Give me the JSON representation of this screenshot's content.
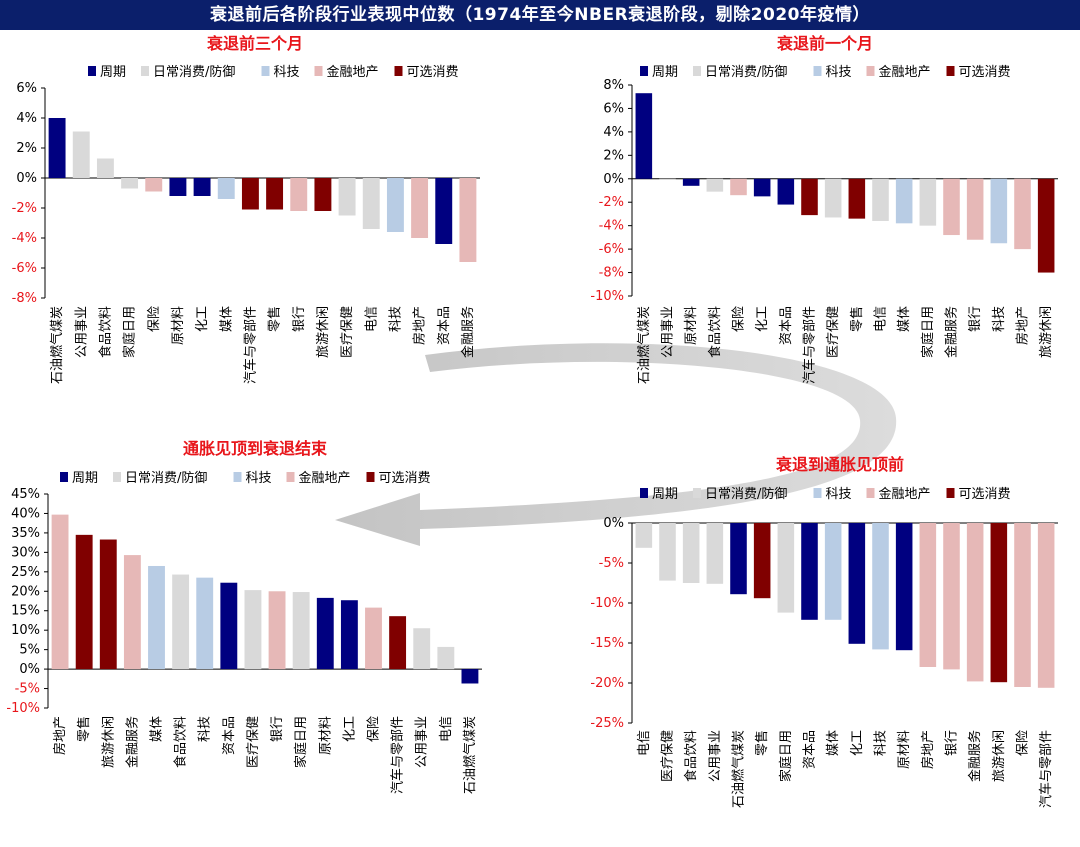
{
  "header": {
    "title": "衰退前后各阶段行业表现中位数（1974年至今NBER衰退阶段，剔除2020年疫情）"
  },
  "legend": [
    {
      "label": "周期",
      "color": "#000080"
    },
    {
      "label": "日常消费/防御",
      "color": "#d9d9d9"
    },
    {
      "label": "科技",
      "color": "#b8cce4"
    },
    {
      "label": "金融地产",
      "color": "#e6b8b7"
    },
    {
      "label": "可选消费",
      "color": "#800000"
    }
  ],
  "chart_data": [
    {
      "type": "bar",
      "title": "衰退前三个月",
      "ylim": [
        -8,
        6
      ],
      "ytick_step": 2,
      "categories": [
        "石油燃气煤炭",
        "公用事业",
        "食品饮料",
        "家庭日用",
        "保险",
        "原材料",
        "化工",
        "媒体",
        "汽车与零部件",
        "零售",
        "银行",
        "旅游休闲",
        "医疗保健",
        "电信",
        "科技",
        "房地产",
        "资本品",
        "金融服务"
      ],
      "values": [
        4.0,
        3.1,
        1.3,
        -0.7,
        -0.9,
        -1.2,
        -1.2,
        -1.4,
        -2.1,
        -2.1,
        -2.2,
        -2.2,
        -2.5,
        -3.4,
        -3.6,
        -4.0,
        -4.4,
        -5.6
      ],
      "groups": [
        "周期",
        "日常消费/防御",
        "日常消费/防御",
        "日常消费/防御",
        "金融地产",
        "周期",
        "周期",
        "科技",
        "可选消费",
        "可选消费",
        "金融地产",
        "可选消费",
        "日常消费/防御",
        "日常消费/防御",
        "科技",
        "金融地产",
        "周期",
        "金融地产"
      ],
      "grid": false,
      "legend_position": "top"
    },
    {
      "type": "bar",
      "title": "衰退前一个月",
      "ylim": [
        -10,
        8
      ],
      "ytick_step": 2,
      "categories": [
        "石油燃气煤炭",
        "公用事业",
        "原材料",
        "食品饮料",
        "保险",
        "化工",
        "资本品",
        "汽车与零部件",
        "医疗保健",
        "零售",
        "电信",
        "媒体",
        "家庭日用",
        "金融服务",
        "银行",
        "科技",
        "房地产",
        "旅游休闲"
      ],
      "values": [
        7.3,
        -0.1,
        -0.6,
        -1.1,
        -1.4,
        -1.5,
        -2.2,
        -3.1,
        -3.3,
        -3.4,
        -3.6,
        -3.8,
        -4.0,
        -4.8,
        -5.2,
        -5.5,
        -6.0,
        -8.0
      ],
      "groups": [
        "周期",
        "日常消费/防御",
        "周期",
        "日常消费/防御",
        "金融地产",
        "周期",
        "周期",
        "可选消费",
        "日常消费/防御",
        "可选消费",
        "日常消费/防御",
        "科技",
        "日常消费/防御",
        "金融地产",
        "金融地产",
        "科技",
        "金融地产",
        "可选消费"
      ],
      "grid": false,
      "legend_position": "top"
    },
    {
      "type": "bar",
      "title": "通胀见顶到衰退结束",
      "ylim": [
        -10,
        45
      ],
      "ytick_step": 5,
      "categories": [
        "房地产",
        "零售",
        "旅游休闲",
        "金融服务",
        "媒体",
        "食品饮料",
        "科技",
        "资本品",
        "医疗保健",
        "银行",
        "家庭日用",
        "原材料",
        "化工",
        "保险",
        "汽车与零部件",
        "公用事业",
        "电信",
        "石油燃气煤炭"
      ],
      "values": [
        39.7,
        34.5,
        33.3,
        29.3,
        26.5,
        24.3,
        23.5,
        22.2,
        20.3,
        20.0,
        19.8,
        18.3,
        17.7,
        15.8,
        13.6,
        10.5,
        5.7,
        -3.7
      ],
      "groups": [
        "金融地产",
        "可选消费",
        "可选消费",
        "金融地产",
        "科技",
        "日常消费/防御",
        "科技",
        "周期",
        "日常消费/防御",
        "金融地产",
        "日常消费/防御",
        "周期",
        "周期",
        "金融地产",
        "可选消费",
        "日常消费/防御",
        "日常消费/防御",
        "周期"
      ],
      "grid": false,
      "legend_position": "top"
    },
    {
      "type": "bar",
      "title": "衰退到通胀见顶前",
      "ylim": [
        -25,
        0
      ],
      "ytick_step": 5,
      "categories": [
        "电信",
        "医疗保健",
        "食品饮料",
        "公用事业",
        "石油燃气煤炭",
        "零售",
        "家庭日用",
        "资本品",
        "媒体",
        "化工",
        "科技",
        "原材料",
        "房地产",
        "银行",
        "金融服务",
        "旅游休闲",
        "保险",
        "汽车与零部件"
      ],
      "values": [
        -3.1,
        -7.2,
        -7.5,
        -7.6,
        -8.9,
        -9.4,
        -11.2,
        -12.1,
        -12.1,
        -15.1,
        -15.8,
        -15.9,
        -18.0,
        -18.3,
        -19.8,
        -19.9,
        -20.5,
        -20.6
      ],
      "groups": [
        "日常消费/防御",
        "日常消费/防御",
        "日常消费/防御",
        "日常消费/防御",
        "周期",
        "可选消费",
        "日常消费/防御",
        "周期",
        "科技",
        "周期",
        "科技",
        "周期",
        "金融地产",
        "金融地产",
        "金融地产",
        "可选消费",
        "金融地产",
        "金融地产"
      ],
      "grid": false,
      "legend_position": "top"
    }
  ]
}
